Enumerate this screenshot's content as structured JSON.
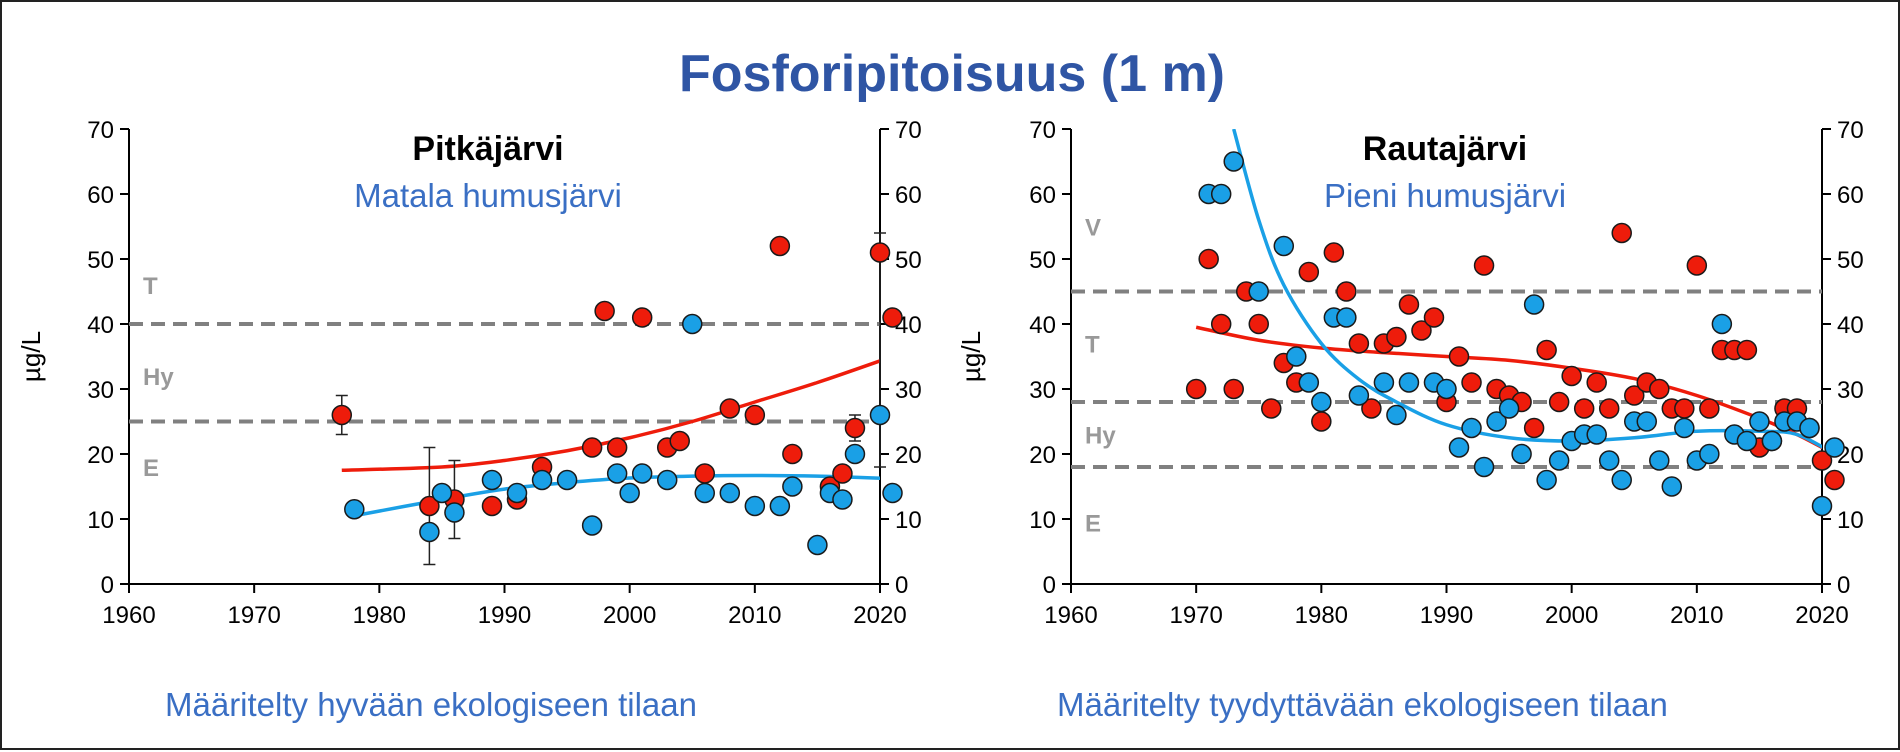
{
  "title": "Fosforipitoisuus (1 m)",
  "colors": {
    "title": "#2f55a4",
    "subtitle": "#3a6fc4",
    "red_points": "#ee1c0b",
    "blue_points": "#1aa0e6",
    "red_trend": "#ee1c0b",
    "blue_trend": "#1aa0e6",
    "threshold": "#808080",
    "class_label": "#999999"
  },
  "chart_data": [
    {
      "type": "scatter",
      "title": "Pitkäjärvi",
      "subtitle": "Matala humusjärvi",
      "caption": "Määritelty hyvään ekologiseen tilaan",
      "ylabel": "µg/L",
      "xlim": [
        1960,
        2020
      ],
      "ylim": [
        0,
        70
      ],
      "x_ticks": [
        "1960",
        "1970",
        "1980",
        "1990",
        "2000",
        "2010",
        "2020"
      ],
      "y_ticks": [
        "0",
        "10",
        "20",
        "30",
        "40",
        "50",
        "60",
        "70"
      ],
      "thresholds": [
        40,
        25
      ],
      "class_labels": [
        {
          "text": "T",
          "y": 46
        },
        {
          "text": "Hy",
          "y": 32
        },
        {
          "text": "E",
          "y": 18
        }
      ],
      "series": [
        {
          "color_key": "red",
          "x": [
            1977,
            1984,
            1986,
            1989,
            1991,
            1993,
            1997,
            1998,
            1999,
            2001,
            2003,
            2004,
            2006,
            2008,
            2010,
            2012,
            2013,
            2016,
            2017,
            2018,
            2020,
            2021
          ],
          "y": [
            26,
            12,
            13,
            12,
            13,
            18,
            21,
            42,
            21,
            41,
            21,
            22,
            17,
            27,
            26,
            52,
            20,
            15,
            17,
            24,
            51,
            41
          ]
        },
        {
          "color_key": "blue",
          "x": [
            1978,
            1984,
            1985,
            1986,
            1989,
            1991,
            1993,
            1995,
            1997,
            1999,
            2000,
            2001,
            2003,
            2005,
            2006,
            2008,
            2010,
            2012,
            2013,
            2015,
            2016,
            2017,
            2018,
            2020,
            2021
          ],
          "y": [
            11.5,
            8,
            14,
            11,
            16,
            14,
            16,
            16,
            9,
            17,
            14,
            17,
            16,
            40,
            14,
            14,
            12,
            12,
            15,
            6,
            14,
            13,
            20,
            26,
            14
          ]
        }
      ],
      "error_bars": [
        {
          "x": 1977,
          "low": 23,
          "high": 29
        },
        {
          "x": 1984,
          "low": 3,
          "high": 21
        },
        {
          "x": 1986,
          "low": 7,
          "high": 19
        },
        {
          "x": 2018,
          "low": 22,
          "high": 26
        },
        {
          "x": 2020,
          "low": 18,
          "high": 54
        }
      ],
      "trends": [
        {
          "color_key": "red",
          "x": [
            1977,
            1985,
            1990,
            1995,
            2000,
            2005,
            2010,
            2015,
            2021
          ],
          "y": [
            17.5,
            18,
            19,
            20.5,
            22.5,
            25,
            28,
            31,
            35
          ]
        },
        {
          "color_key": "blue",
          "x": [
            1978,
            1985,
            1990,
            1995,
            2000,
            2005,
            2010,
            2015,
            2021
          ],
          "y": [
            10.5,
            13,
            14.6,
            15.6,
            16.3,
            16.6,
            16.7,
            16.6,
            16.2
          ]
        }
      ]
    },
    {
      "type": "scatter",
      "title": "Rautajärvi",
      "subtitle": "Pieni humusjärvi",
      "caption": "Määritelty tyydyttävään ekologiseen tilaan",
      "ylabel": "µg/L",
      "xlim": [
        1960,
        2020
      ],
      "ylim": [
        0,
        70
      ],
      "x_ticks": [
        "1960",
        "1970",
        "1980",
        "1990",
        "2000",
        "2010",
        "2020"
      ],
      "y_ticks": [
        "0",
        "10",
        "20",
        "30",
        "40",
        "50",
        "60",
        "70"
      ],
      "thresholds": [
        45,
        28,
        18
      ],
      "class_labels": [
        {
          "text": "V",
          "y": 55
        },
        {
          "text": "T",
          "y": 37
        },
        {
          "text": "Hy",
          "y": 23
        },
        {
          "text": "E",
          "y": 9.5
        }
      ],
      "series": [
        {
          "color_key": "red",
          "x": [
            1970,
            1971,
            1972,
            1973,
            1974,
            1975,
            1976,
            1977,
            1978,
            1979,
            1980,
            1981,
            1982,
            1983,
            1984,
            1985,
            1986,
            1987,
            1988,
            1989,
            1990,
            1991,
            1992,
            1993,
            1994,
            1995,
            1996,
            1997,
            1998,
            1999,
            2000,
            2001,
            2002,
            2003,
            2004,
            2005,
            2006,
            2007,
            2008,
            2009,
            2010,
            2011,
            2012,
            2013,
            2014,
            2015,
            2016,
            2017,
            2018,
            2019,
            2020,
            2021
          ],
          "y": [
            30,
            50,
            40,
            30,
            45,
            40,
            27,
            34,
            31,
            48,
            25,
            51,
            45,
            37,
            27,
            37,
            38,
            43,
            39,
            41,
            28,
            35,
            31,
            49,
            30,
            29,
            28,
            24,
            36,
            28,
            32,
            27,
            31,
            27,
            54,
            29,
            31,
            30,
            27,
            27,
            49,
            27,
            36,
            36,
            36,
            21,
            22,
            27,
            27,
            24,
            19,
            16
          ]
        },
        {
          "color_key": "blue",
          "x": [
            1971,
            1972,
            1973,
            1975,
            1977,
            1978,
            1979,
            1980,
            1981,
            1982,
            1983,
            1985,
            1986,
            1987,
            1989,
            1990,
            1991,
            1992,
            1993,
            1994,
            1995,
            1996,
            1997,
            1998,
            1999,
            2000,
            2001,
            2002,
            2003,
            2004,
            2005,
            2006,
            2007,
            2008,
            2009,
            2010,
            2011,
            2012,
            2013,
            2014,
            2015,
            2016,
            2017,
            2018,
            2019,
            2020,
            2021
          ],
          "y": [
            60,
            60,
            65,
            45,
            52,
            35,
            31,
            28,
            41,
            41,
            29,
            31,
            26,
            31,
            31,
            30,
            21,
            24,
            18,
            25,
            27,
            20,
            43,
            16,
            19,
            22,
            23,
            23,
            19,
            16,
            25,
            25,
            19,
            15,
            24,
            19,
            20,
            40,
            23,
            22,
            25,
            22,
            25,
            25,
            24,
            12,
            21
          ]
        }
      ],
      "error_bars": [],
      "trends": [
        {
          "color_key": "red",
          "x": [
            1970,
            1975,
            1980,
            1985,
            1990,
            1995,
            2000,
            2005,
            2010,
            2015,
            2018,
            2021
          ],
          "y": [
            39.5,
            37.5,
            36.3,
            35.6,
            35,
            34.4,
            33.2,
            31.6,
            29,
            25.5,
            23,
            20
          ]
        },
        {
          "color_key": "blue",
          "x": [
            1973,
            1975,
            1977,
            1980,
            1983,
            1986,
            1990,
            1995,
            2000,
            2005,
            2010,
            2015,
            2018,
            2021
          ],
          "y": [
            70,
            56,
            46,
            37,
            31.5,
            28,
            24.5,
            22.5,
            22,
            22.5,
            23.5,
            23.5,
            23,
            20
          ]
        }
      ]
    }
  ]
}
